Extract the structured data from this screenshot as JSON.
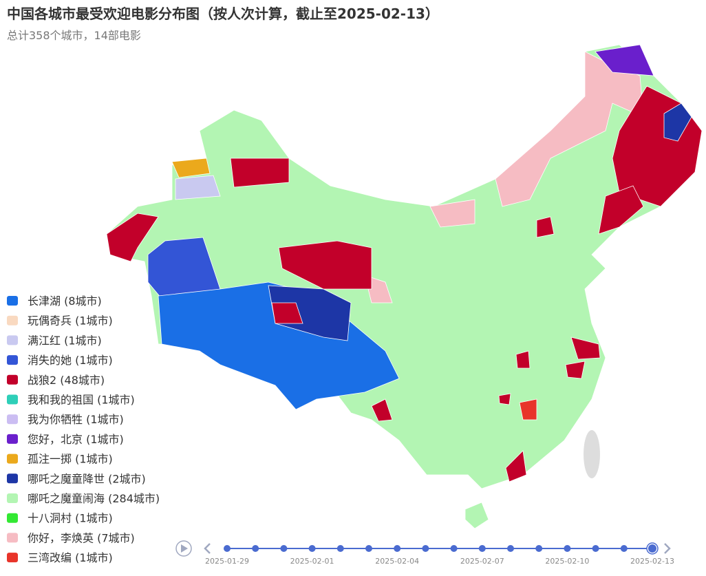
{
  "header": {
    "title": "中国各城市最受欢迎电影分布图（按人次计算，截止至2025-02-13）",
    "subtitle": "总计358个城市，14部电影"
  },
  "legend": [
    {
      "label": "长津湖 (8城市)",
      "color": "#1a6fe6"
    },
    {
      "label": "玩偶奇兵 (1城市)",
      "color": "#f9d9c0"
    },
    {
      "label": "满江红 (1城市)",
      "color": "#c9c9f0"
    },
    {
      "label": "消失的她 (1城市)",
      "color": "#3355d6"
    },
    {
      "label": "战狼2 (48城市)",
      "color": "#c2002a"
    },
    {
      "label": "我和我的祖国 (1城市)",
      "color": "#2ecfb8"
    },
    {
      "label": "我为你牺牲 (1城市)",
      "color": "#cbbdf2"
    },
    {
      "label": "您好，北京 (1城市)",
      "color": "#6a1fcc"
    },
    {
      "label": "孤注一掷 (1城市)",
      "color": "#eba91c"
    },
    {
      "label": "哪吒之魔童降世 (2城市)",
      "color": "#1d36a6"
    },
    {
      "label": "哪吒之魔童闹海 (284城市)",
      "color": "#b3f5b3"
    },
    {
      "label": "十八洞村 (1城市)",
      "color": "#33e833"
    },
    {
      "label": "你好，李焕英 (7城市)",
      "color": "#f6bcc3"
    },
    {
      "label": "三湾改编 (1城市)",
      "color": "#e8342a"
    }
  ],
  "timeline": {
    "labels": [
      "2025-01-29",
      "2025-02-01",
      "2025-02-04",
      "2025-02-07",
      "2025-02-10",
      "2025-02-13"
    ]
  }
}
